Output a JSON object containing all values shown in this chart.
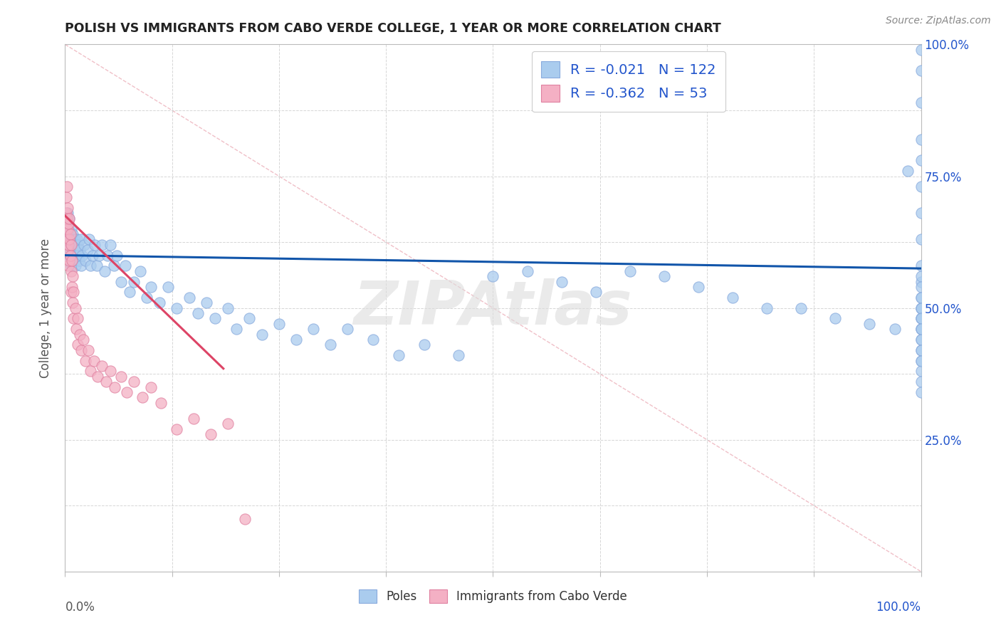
{
  "title": "POLISH VS IMMIGRANTS FROM CABO VERDE COLLEGE, 1 YEAR OR MORE CORRELATION CHART",
  "source": "Source: ZipAtlas.com",
  "ylabel": "College, 1 year or more",
  "right_yticks": [
    1.0,
    0.75,
    0.5,
    0.25
  ],
  "right_yticklabels": [
    "100.0%",
    "75.0%",
    "50.0%",
    "25.0%"
  ],
  "xlim": [
    0.0,
    1.0
  ],
  "ylim": [
    0.0,
    1.0
  ],
  "poles": {
    "name": "Poles",
    "R": -0.021,
    "N": 122,
    "dot_color": "#aaccee",
    "dot_edge": "#88aadd",
    "trend_color": "#1155aa",
    "trend_x": [
      0.0,
      1.0
    ],
    "trend_y": [
      0.6,
      0.575
    ],
    "points": [
      [
        0.001,
        0.63
      ],
      [
        0.002,
        0.66
      ],
      [
        0.002,
        0.61
      ],
      [
        0.003,
        0.64
      ],
      [
        0.003,
        0.68
      ],
      [
        0.004,
        0.62
      ],
      [
        0.004,
        0.65
      ],
      [
        0.005,
        0.63
      ],
      [
        0.005,
        0.67
      ],
      [
        0.005,
        0.6
      ],
      [
        0.006,
        0.64
      ],
      [
        0.006,
        0.61
      ],
      [
        0.007,
        0.65
      ],
      [
        0.007,
        0.62
      ],
      [
        0.007,
        0.58
      ],
      [
        0.008,
        0.63
      ],
      [
        0.008,
        0.6
      ],
      [
        0.009,
        0.64
      ],
      [
        0.009,
        0.61
      ],
      [
        0.01,
        0.62
      ],
      [
        0.01,
        0.59
      ],
      [
        0.011,
        0.63
      ],
      [
        0.011,
        0.6
      ],
      [
        0.012,
        0.62
      ],
      [
        0.012,
        0.58
      ],
      [
        0.013,
        0.61
      ],
      [
        0.014,
        0.63
      ],
      [
        0.015,
        0.6
      ],
      [
        0.015,
        0.62
      ],
      [
        0.016,
        0.59
      ],
      [
        0.017,
        0.61
      ],
      [
        0.018,
        0.63
      ],
      [
        0.019,
        0.58
      ],
      [
        0.02,
        0.6
      ],
      [
        0.022,
        0.62
      ],
      [
        0.024,
        0.59
      ],
      [
        0.026,
        0.61
      ],
      [
        0.028,
        0.63
      ],
      [
        0.03,
        0.58
      ],
      [
        0.032,
        0.6
      ],
      [
        0.035,
        0.62
      ],
      [
        0.037,
        0.58
      ],
      [
        0.04,
        0.6
      ],
      [
        0.043,
        0.62
      ],
      [
        0.046,
        0.57
      ],
      [
        0.05,
        0.6
      ],
      [
        0.053,
        0.62
      ],
      [
        0.057,
        0.58
      ],
      [
        0.06,
        0.6
      ],
      [
        0.065,
        0.55
      ],
      [
        0.07,
        0.58
      ],
      [
        0.075,
        0.53
      ],
      [
        0.08,
        0.55
      ],
      [
        0.088,
        0.57
      ],
      [
        0.095,
        0.52
      ],
      [
        0.1,
        0.54
      ],
      [
        0.11,
        0.51
      ],
      [
        0.12,
        0.54
      ],
      [
        0.13,
        0.5
      ],
      [
        0.145,
        0.52
      ],
      [
        0.155,
        0.49
      ],
      [
        0.165,
        0.51
      ],
      [
        0.175,
        0.48
      ],
      [
        0.19,
        0.5
      ],
      [
        0.2,
        0.46
      ],
      [
        0.215,
        0.48
      ],
      [
        0.23,
        0.45
      ],
      [
        0.25,
        0.47
      ],
      [
        0.27,
        0.44
      ],
      [
        0.29,
        0.46
      ],
      [
        0.31,
        0.43
      ],
      [
        0.33,
        0.46
      ],
      [
        0.36,
        0.44
      ],
      [
        0.39,
        0.41
      ],
      [
        0.42,
        0.43
      ],
      [
        0.46,
        0.41
      ],
      [
        0.5,
        0.56
      ],
      [
        0.54,
        0.57
      ],
      [
        0.58,
        0.55
      ],
      [
        0.62,
        0.53
      ],
      [
        0.66,
        0.57
      ],
      [
        0.7,
        0.56
      ],
      [
        0.74,
        0.54
      ],
      [
        0.78,
        0.52
      ],
      [
        0.82,
        0.5
      ],
      [
        0.86,
        0.5
      ],
      [
        0.9,
        0.48
      ],
      [
        0.94,
        0.47
      ],
      [
        0.97,
        0.46
      ],
      [
        0.985,
        0.76
      ],
      [
        1.0,
        0.99
      ],
      [
        1.0,
        0.95
      ],
      [
        1.0,
        0.89
      ],
      [
        1.0,
        0.82
      ],
      [
        1.0,
        0.78
      ],
      [
        1.0,
        0.73
      ],
      [
        1.0,
        0.68
      ],
      [
        1.0,
        0.63
      ],
      [
        1.0,
        0.58
      ],
      [
        1.0,
        0.55
      ],
      [
        1.0,
        0.52
      ],
      [
        1.0,
        0.5
      ],
      [
        1.0,
        0.48
      ],
      [
        1.0,
        0.46
      ],
      [
        1.0,
        0.44
      ],
      [
        1.0,
        0.42
      ],
      [
        1.0,
        0.4
      ],
      [
        1.0,
        0.38
      ],
      [
        1.0,
        0.36
      ],
      [
        1.0,
        0.34
      ],
      [
        1.0,
        0.5
      ],
      [
        1.0,
        0.48
      ],
      [
        1.0,
        0.46
      ],
      [
        1.0,
        0.44
      ],
      [
        1.0,
        0.42
      ],
      [
        1.0,
        0.4
      ],
      [
        1.0,
        0.56
      ],
      [
        1.0,
        0.54
      ],
      [
        1.0,
        0.52
      ],
      [
        1.0,
        0.5
      ],
      [
        1.0,
        0.48
      ],
      [
        1.0,
        0.46
      ]
    ]
  },
  "caboverde": {
    "name": "Immigrants from Cabo Verde",
    "R": -0.362,
    "N": 53,
    "dot_color": "#f4b0c4",
    "dot_edge": "#e080a0",
    "trend_color": "#dd4466",
    "trend_x": [
      0.0,
      0.185
    ],
    "trend_y": [
      0.675,
      0.385
    ],
    "points": [
      [
        0.001,
        0.71
      ],
      [
        0.001,
        0.68
      ],
      [
        0.001,
        0.65
      ],
      [
        0.002,
        0.73
      ],
      [
        0.002,
        0.67
      ],
      [
        0.002,
        0.63
      ],
      [
        0.003,
        0.69
      ],
      [
        0.003,
        0.65
      ],
      [
        0.003,
        0.61
      ],
      [
        0.004,
        0.66
      ],
      [
        0.004,
        0.62
      ],
      [
        0.004,
        0.58
      ],
      [
        0.005,
        0.67
      ],
      [
        0.005,
        0.63
      ],
      [
        0.005,
        0.59
      ],
      [
        0.006,
        0.64
      ],
      [
        0.006,
        0.6
      ],
      [
        0.007,
        0.62
      ],
      [
        0.007,
        0.57
      ],
      [
        0.007,
        0.53
      ],
      [
        0.008,
        0.59
      ],
      [
        0.008,
        0.54
      ],
      [
        0.009,
        0.56
      ],
      [
        0.009,
        0.51
      ],
      [
        0.01,
        0.53
      ],
      [
        0.01,
        0.48
      ],
      [
        0.012,
        0.5
      ],
      [
        0.013,
        0.46
      ],
      [
        0.015,
        0.48
      ],
      [
        0.015,
        0.43
      ],
      [
        0.017,
        0.45
      ],
      [
        0.019,
        0.42
      ],
      [
        0.021,
        0.44
      ],
      [
        0.024,
        0.4
      ],
      [
        0.027,
        0.42
      ],
      [
        0.03,
        0.38
      ],
      [
        0.034,
        0.4
      ],
      [
        0.038,
        0.37
      ],
      [
        0.043,
        0.39
      ],
      [
        0.048,
        0.36
      ],
      [
        0.053,
        0.38
      ],
      [
        0.058,
        0.35
      ],
      [
        0.065,
        0.37
      ],
      [
        0.072,
        0.34
      ],
      [
        0.08,
        0.36
      ],
      [
        0.09,
        0.33
      ],
      [
        0.1,
        0.35
      ],
      [
        0.112,
        0.32
      ],
      [
        0.13,
        0.27
      ],
      [
        0.15,
        0.29
      ],
      [
        0.17,
        0.26
      ],
      [
        0.19,
        0.28
      ],
      [
        0.21,
        0.1
      ]
    ]
  },
  "diagonal_color": "#f0c0c8",
  "grid_color": "#cccccc",
  "background_color": "#ffffff",
  "title_color": "#222222",
  "source_color": "#888888",
  "watermark": "ZIPAtlas"
}
